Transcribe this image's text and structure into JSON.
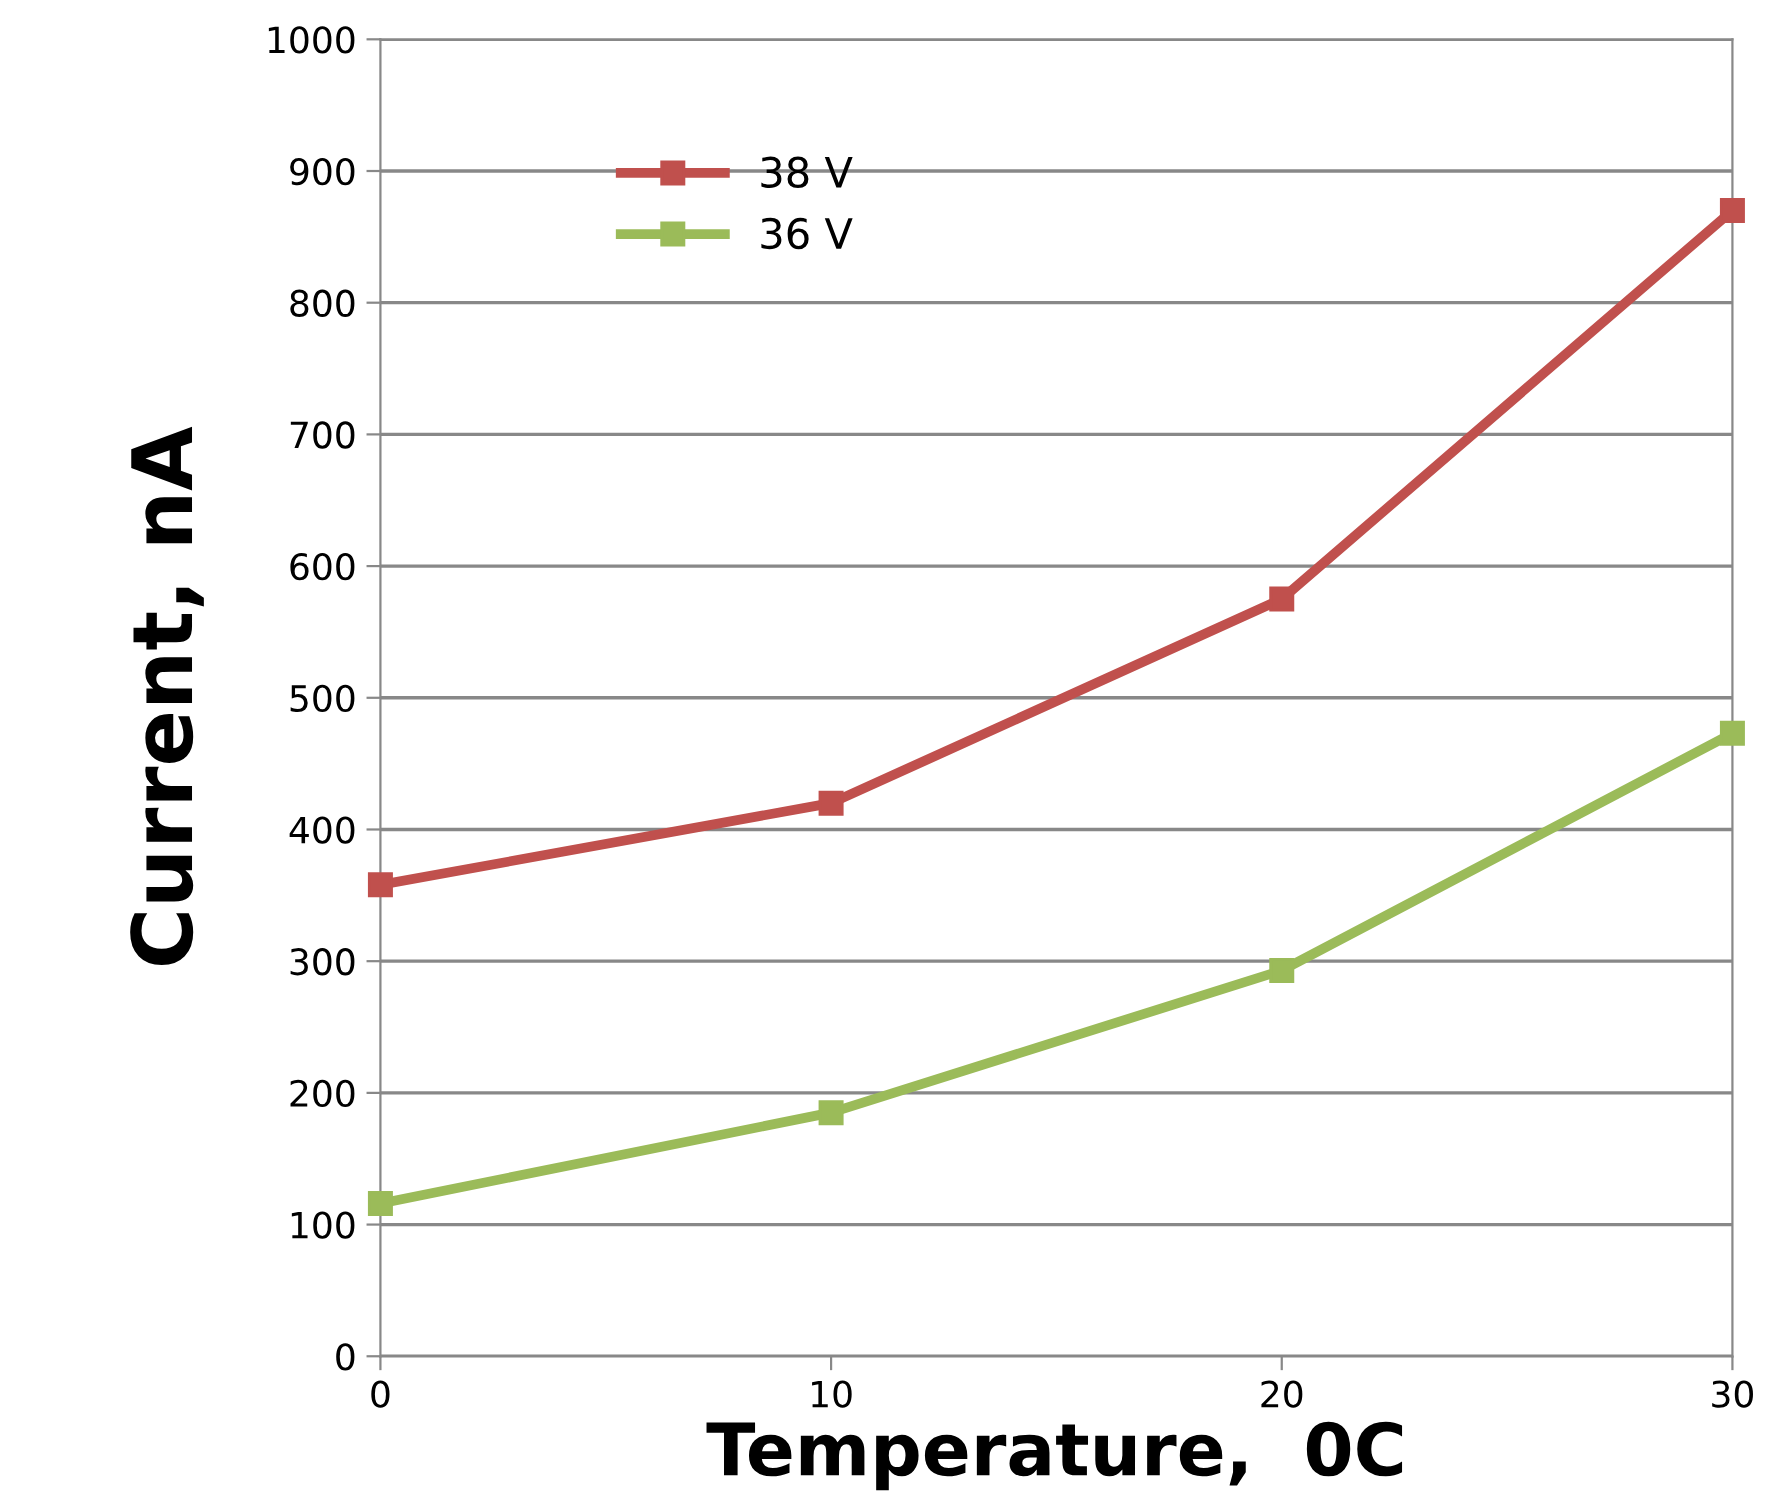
{
  "chart_data": {
    "type": "line",
    "xlabel": "Temperature,  0C",
    "ylabel": "Current, nA",
    "x": [
      0,
      10,
      20,
      30
    ],
    "series": [
      {
        "name": "38 V",
        "color": "#c0504d",
        "values": [
          358,
          420,
          575,
          870
        ]
      },
      {
        "name": "36 V",
        "color": "#9bbb59",
        "values": [
          116,
          185,
          293,
          473
        ]
      }
    ],
    "xlim": [
      0,
      30
    ],
    "xticks": [
      0,
      10,
      20,
      30
    ],
    "ylim": [
      0,
      1000
    ],
    "yticks": [
      0,
      100,
      200,
      300,
      400,
      500,
      600,
      700,
      800,
      900,
      1000
    ],
    "grid": "y",
    "legend": "top left",
    "marker": "square",
    "line_style": "solid"
  }
}
